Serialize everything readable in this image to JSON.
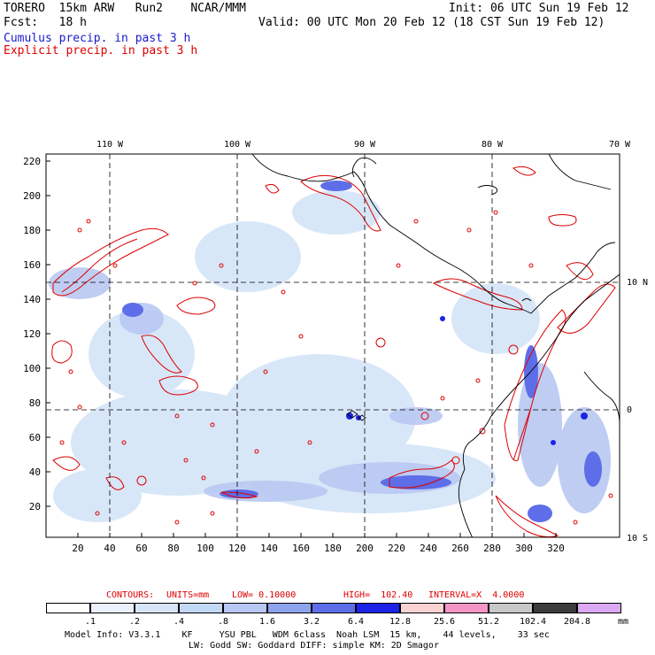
{
  "header": {
    "line1_left": "TORERO  15km ARW   Run2    NCAR/MMM",
    "line1_right": "Init: 06 UTC Sun 19 Feb 12",
    "line2_left": "Fcst:   18 h",
    "line2_right": "Valid: 00 UTC Mon 20 Feb 12 (18 CST Sun 19 Feb 12)",
    "legend_cumulus": "Cumulus precip. in past 3 h",
    "legend_explicit": "Explicit precip. in past 3 h"
  },
  "colors": {
    "cumulus": "#1a1acc",
    "explicit": "#dd0000",
    "shading": [
      "#ffffff",
      "#eaf1fb",
      "#d6e6f8",
      "#c2d9f5",
      "#b9c8f2",
      "#8ea3ee",
      "#5e6ee8",
      "#1c22e6",
      "#f9d2d2",
      "#f495c7",
      "#c8c8c8",
      "#3c3c3c",
      "#dba8f2"
    ]
  },
  "map": {
    "top_lon_labels": [
      "110 W",
      "100 W",
      "90 W",
      "80 W",
      "70 W"
    ],
    "right_lat_labels": [
      "10 N",
      "0",
      "10 S"
    ],
    "y_axis_ticks": [
      "220",
      "200",
      "180",
      "160",
      "140",
      "120",
      "100",
      "80",
      "60",
      "40",
      "20"
    ],
    "x_axis_ticks": [
      "20",
      "40",
      "60",
      "80",
      "100",
      "120",
      "140",
      "160",
      "180",
      "200",
      "220",
      "240",
      "260",
      "280",
      "300",
      "320"
    ]
  },
  "contours_caption": {
    "label": "CONTOURS:",
    "units": "UNITS=mm",
    "low": "LOW= 0.10000",
    "high": "HIGH=  102.40",
    "interval": "INTERVAL=X  4.0000"
  },
  "color_scale": {
    "labels": [
      ".1",
      ".2",
      ".4",
      ".8",
      "1.6",
      "3.2",
      "6.4",
      "12.8",
      "25.6",
      "51.2",
      "102.4",
      "204.8"
    ],
    "unit": "mm"
  },
  "footer": {
    "line1": "Model Info: V3.3.1    KF     YSU PBL   WDM 6class  Noah LSM  15 km,    44 levels,    33 sec",
    "line2": "LW: Godd SW: Goddard DIFF: simple KM: 2D Smagor"
  }
}
